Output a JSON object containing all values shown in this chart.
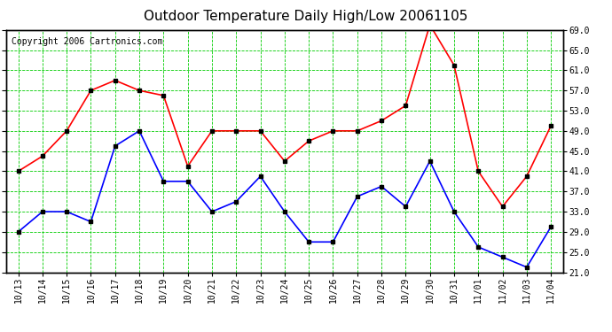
{
  "title": "Outdoor Temperature Daily High/Low 20061105",
  "copyright": "Copyright 2006 Cartronics.com",
  "labels": [
    "10/13",
    "10/14",
    "10/15",
    "10/16",
    "10/17",
    "10/18",
    "10/19",
    "10/20",
    "10/21",
    "10/22",
    "10/23",
    "10/24",
    "10/25",
    "10/26",
    "10/27",
    "10/28",
    "10/29",
    "10/30",
    "10/31",
    "11/01",
    "11/02",
    "11/03",
    "11/04"
  ],
  "high": [
    41,
    44,
    49,
    57,
    59,
    57,
    56,
    42,
    49,
    49,
    49,
    43,
    47,
    49,
    49,
    51,
    54,
    70,
    62,
    41,
    34,
    40,
    50
  ],
  "low": [
    29,
    33,
    33,
    31,
    46,
    49,
    39,
    39,
    33,
    35,
    40,
    33,
    27,
    27,
    36,
    38,
    34,
    43,
    33,
    26,
    24,
    22,
    30
  ],
  "high_color": "#ff0000",
  "low_color": "#0000ff",
  "grid_color": "#00cc00",
  "bg_color": "#ffffff",
  "plot_bg_color": "#ffffff",
  "border_color": "#000000",
  "ylim_min": 21.0,
  "ylim_max": 69.0,
  "ytick_labels": [
    21.0,
    25.0,
    29.0,
    33.0,
    37.0,
    41.0,
    45.0,
    49.0,
    53.0,
    57.0,
    61.0,
    65.0,
    69.0
  ],
  "marker": "s",
  "marker_size": 2.5,
  "line_width": 1.2,
  "title_fontsize": 11,
  "tick_fontsize": 7,
  "copyright_fontsize": 7
}
